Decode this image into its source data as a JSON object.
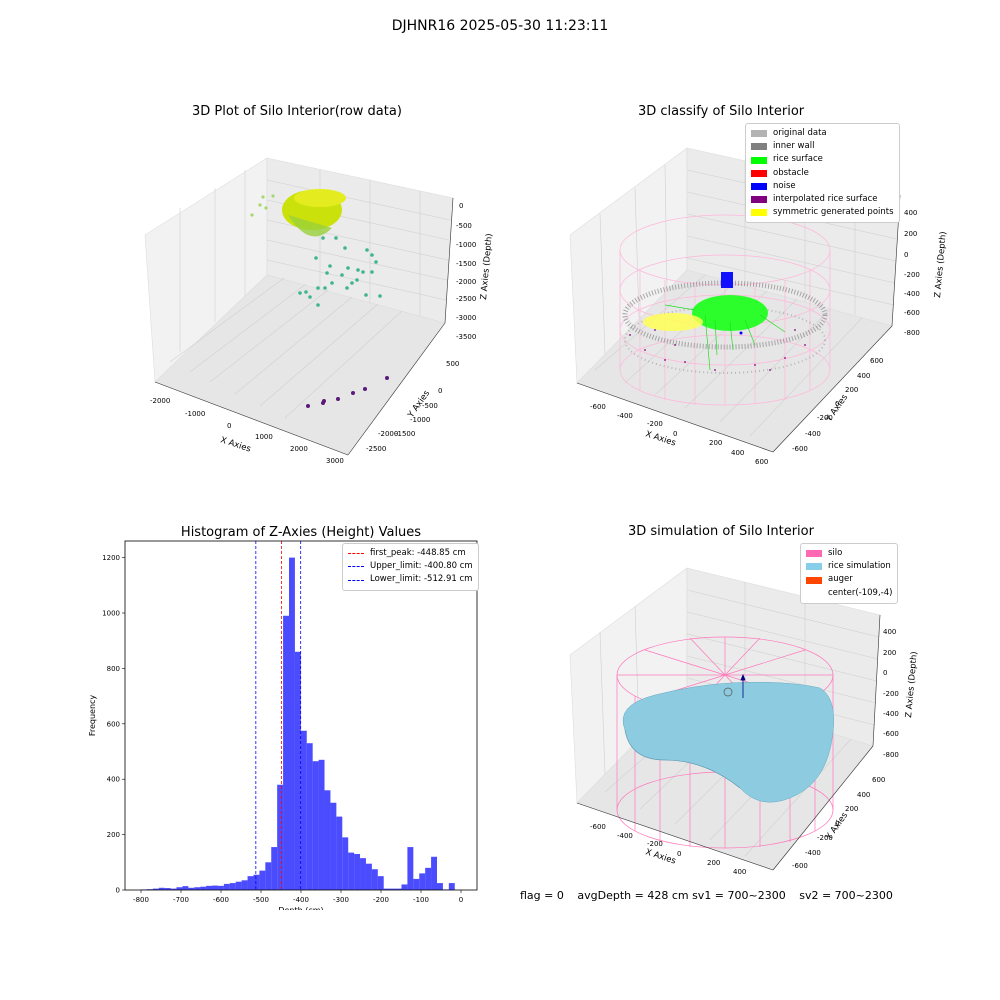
{
  "suptitle": "DJHNR16 2025-05-30 11:23:11",
  "panels": {
    "raw": {
      "title": "3D Plot of Silo Interior(row data)",
      "xlabel": "X Axies",
      "ylabel": "Y Axies",
      "zlabel": "Z Axies (Depth)",
      "xticks": [
        "-2000",
        "-1000",
        "0",
        "1000",
        "2000",
        "3000"
      ],
      "yticks": [
        "500",
        "0",
        "-500",
        "-1000",
        "-1500",
        "-2000",
        "-2500"
      ],
      "zticks": [
        "0",
        "-500",
        "-1000",
        "-1500",
        "-2000",
        "-2500",
        "-3000",
        "-3500"
      ]
    },
    "classify": {
      "title": "3D classify of Silo Interior",
      "xlabel": "X Axies",
      "ylabel": "Y Axies",
      "zlabel": "Z Axies (Depth)",
      "xticks": [
        "-600",
        "-400",
        "-200",
        "0",
        "200",
        "400",
        "600"
      ],
      "yticks": [
        "600",
        "400",
        "200",
        "0",
        "-200",
        "-400",
        "-600"
      ],
      "zticks": [
        "400",
        "200",
        "0",
        "-200",
        "-400",
        "-600",
        "-800"
      ],
      "legend": [
        {
          "label": "original data",
          "color": "#b3b3b3"
        },
        {
          "label": "inner wall",
          "color": "#808080"
        },
        {
          "label": "rice surface",
          "color": "#00ff00"
        },
        {
          "label": "obstacle",
          "color": "#ff0000"
        },
        {
          "label": "noise",
          "color": "#0000ff"
        },
        {
          "label": "interpolated rice surface",
          "color": "#800080"
        },
        {
          "label": "symmetric generated points",
          "color": "#ffff00"
        }
      ]
    },
    "simulation": {
      "title": "3D simulation of Silo Interior",
      "xlabel": "X Axies",
      "ylabel": "Y Axies",
      "zlabel": "Z Axies (Depth)",
      "xticks": [
        "-600",
        "-400",
        "-200",
        "0",
        "200",
        "400"
      ],
      "yticks": [
        "600",
        "400",
        "200",
        "0",
        "-200",
        "-400",
        "-600"
      ],
      "zticks": [
        "400",
        "200",
        "0",
        "-200",
        "-400",
        "-600",
        "-800"
      ],
      "legend": [
        {
          "label": "silo",
          "color": "#ff69b4"
        },
        {
          "label": "rice simulation",
          "color": "#87ceeb"
        },
        {
          "label": "auger",
          "color": "#ff4500"
        },
        {
          "label": "center(-109,-4)",
          "color": ""
        }
      ]
    }
  },
  "footer": {
    "flag": "flag = 0",
    "avg": "avgDepth = 428 cm  sv1 = 700~2300",
    "sv2": "sv2 = 700~2300"
  },
  "chart_data": [
    {
      "type": "bar",
      "title": "Histogram of Z-Axies (Height) Values",
      "xlabel": "Depth (cm)",
      "ylabel": "Frequency",
      "xlim": [
        -840,
        40
      ],
      "ylim": [
        0,
        1260
      ],
      "bar_color": "#0000ff",
      "xticks": [
        -800,
        -700,
        -600,
        -500,
        -400,
        -300,
        -200,
        -100,
        0
      ],
      "yticks": [
        0,
        200,
        400,
        600,
        800,
        1000,
        1200
      ],
      "bin_width": 14.8,
      "bin_starts": [
        -800,
        -785.2,
        -770.4,
        -755.6,
        -740.8,
        -726,
        -711.2,
        -696.4,
        -681.6,
        -666.8,
        -652,
        -637.2,
        -622.4,
        -607.6,
        -592.8,
        -578,
        -563.2,
        -548.4,
        -533.6,
        -518.8,
        -504,
        -489.2,
        -474.4,
        -459.6,
        -444.8,
        -430,
        -415.2,
        -400.4,
        -385.6,
        -370.8,
        -356,
        -341.2,
        -326.4,
        -311.6,
        -296.8,
        -282,
        -267.2,
        -252.4,
        -237.6,
        -222.8,
        -208,
        -193.2,
        -178.4,
        -163.6,
        -148.8,
        -134,
        -119.2,
        -104.4,
        -89.6,
        -74.8,
        -60,
        -45.2,
        -30.4,
        -15.6
      ],
      "values": [
        2,
        3,
        5,
        8,
        7,
        5,
        10,
        14,
        8,
        10,
        12,
        15,
        16,
        15,
        22,
        25,
        30,
        35,
        50,
        55,
        70,
        100,
        155,
        380,
        990,
        1200,
        860,
        575,
        530,
        465,
        470,
        360,
        315,
        265,
        190,
        135,
        130,
        115,
        95,
        75,
        50,
        5,
        5,
        5,
        20,
        155,
        40,
        60,
        80,
        120,
        25,
        2,
        25,
        0
      ],
      "series": [
        {
          "name": "first_peak: -448.85 cm",
          "x": -448.85,
          "color": "#ff0000"
        },
        {
          "name": "Upper_limit: -400.80 cm",
          "x": -400.8,
          "color": "#0000ff"
        },
        {
          "name": "Lower_limit: -512.91 cm",
          "x": -512.91,
          "color": "#0000ff"
        }
      ],
      "legend_position": "upper right"
    }
  ]
}
